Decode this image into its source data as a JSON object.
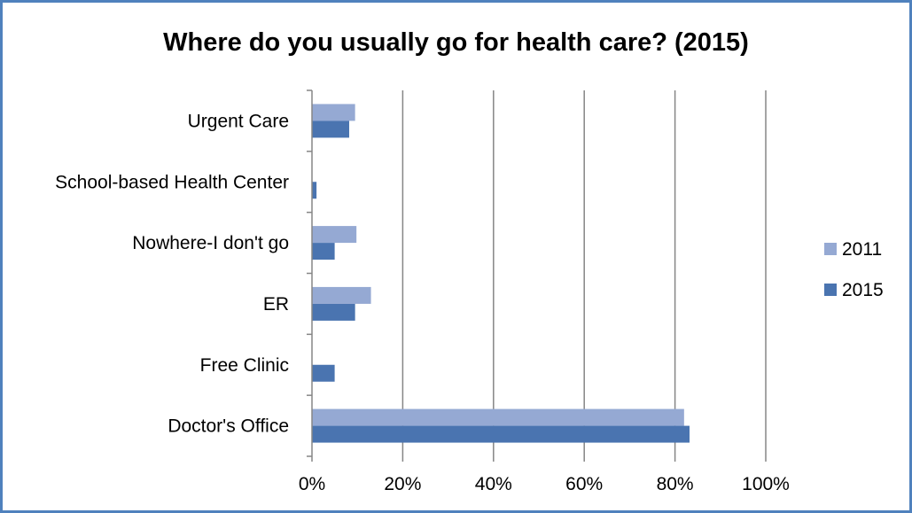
{
  "chart_data": {
    "type": "bar",
    "orientation": "horizontal",
    "title": "Where do you usually go for health care? (2015)",
    "categories": [
      "Doctor's Office",
      "Free Clinic",
      "ER",
      "Nowhere-I don't go",
      "School-based Health Center",
      "Urgent Care"
    ],
    "series": [
      {
        "name": "2011",
        "color": "#95a9d3",
        "values": [
          82,
          0,
          13,
          9.8,
          0,
          9.5
        ]
      },
      {
        "name": "2015",
        "color": "#4a74b0",
        "values": [
          83.2,
          5,
          9.5,
          5,
          1,
          8.2
        ]
      }
    ],
    "x_ticks": [
      "0%",
      "20%",
      "40%",
      "60%",
      "80%",
      "100%"
    ],
    "xlim": [
      0,
      100
    ],
    "grid": "vertical",
    "legend_position": "right"
  }
}
